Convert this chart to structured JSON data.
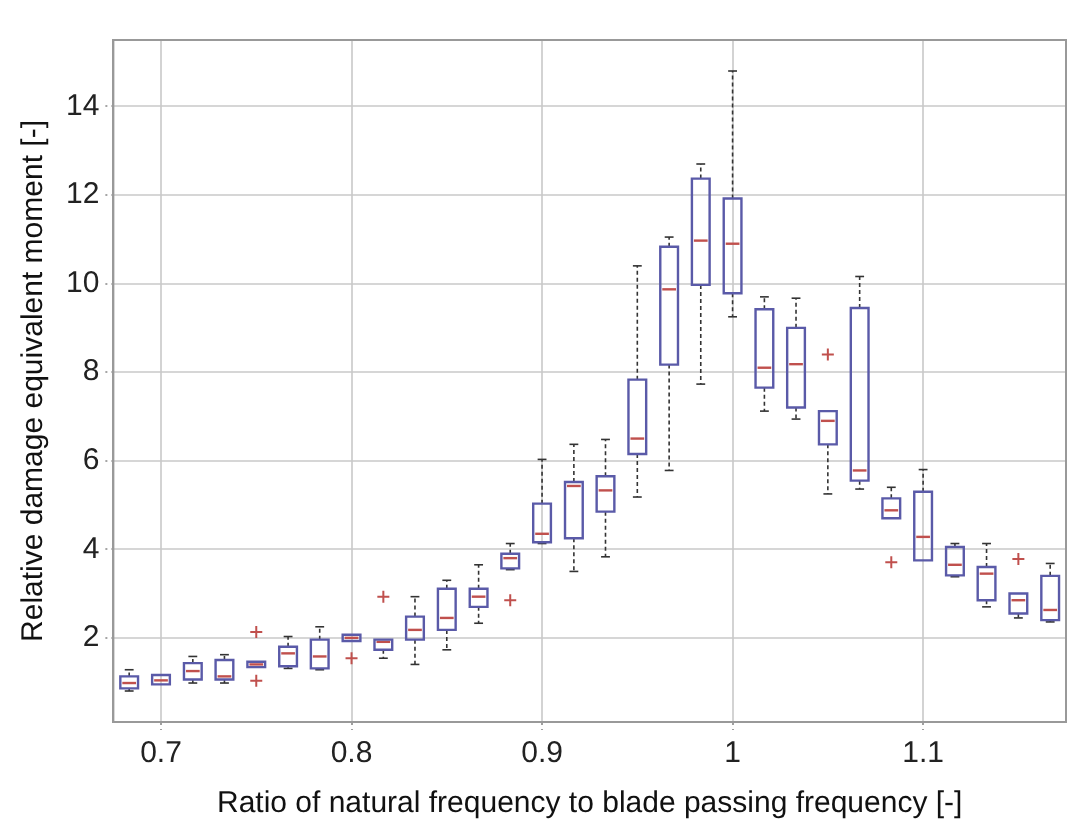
{
  "chart_data": {
    "type": "box",
    "xlabel": "Ratio of natural frequency to blade passing frequency [-]",
    "ylabel": "Relative damage equivalent moment [-]",
    "x": [
      0.6833,
      0.7,
      0.7167,
      0.7333,
      0.75,
      0.7667,
      0.7833,
      0.8,
      0.8167,
      0.8333,
      0.85,
      0.8667,
      0.8833,
      0.9,
      0.9167,
      0.9333,
      0.95,
      0.9667,
      0.9833,
      1.0,
      1.0167,
      1.0333,
      1.05,
      1.0667,
      1.0833,
      1.1,
      1.1167,
      1.1333,
      1.15,
      1.1667
    ],
    "xlim": [
      0.675,
      1.175
    ],
    "xticks": [
      0.7,
      0.8,
      0.9,
      1,
      1.1
    ],
    "ylim": [
      0.1,
      15.5
    ],
    "yticks": [
      2,
      4,
      6,
      8,
      10,
      12,
      14
    ],
    "grid": true,
    "series": [
      {
        "color": "#5a5aa8",
        "boxes": [
          {
            "low": 0.8,
            "q1": 0.86,
            "median": 0.98,
            "q3": 1.13,
            "high": 1.28
          },
          {
            "low": 0.95,
            "q1": 0.95,
            "median": 1.04,
            "q3": 1.16,
            "high": 1.16
          },
          {
            "low": 0.98,
            "q1": 1.06,
            "median": 1.25,
            "q3": 1.43,
            "high": 1.58
          },
          {
            "low": 0.98,
            "q1": 1.06,
            "median": 1.13,
            "q3": 1.5,
            "high": 1.62
          },
          {
            "low": 1.34,
            "q1": 1.34,
            "median": 1.4,
            "q3": 1.46,
            "high": 1.46,
            "outliers": [
              2.13,
              1.03
            ]
          },
          {
            "low": 1.31,
            "q1": 1.36,
            "median": 1.65,
            "q3": 1.8,
            "high": 2.03
          },
          {
            "low": 1.28,
            "q1": 1.31,
            "median": 1.58,
            "q3": 1.96,
            "high": 2.25
          },
          {
            "low": 1.93,
            "q1": 1.93,
            "median": 2.0,
            "q3": 2.07,
            "high": 2.07,
            "outliers": [
              1.54
            ]
          },
          {
            "low": 1.54,
            "q1": 1.73,
            "median": 1.91,
            "q3": 1.96,
            "high": 1.96,
            "outliers": [
              2.93
            ]
          },
          {
            "low": 1.4,
            "q1": 1.96,
            "median": 2.18,
            "q3": 2.48,
            "high": 2.93
          },
          {
            "low": 1.73,
            "q1": 2.18,
            "median": 2.45,
            "q3": 3.11,
            "high": 3.3
          },
          {
            "low": 2.33,
            "q1": 2.7,
            "median": 2.93,
            "q3": 3.11,
            "high": 3.65
          },
          {
            "low": 3.54,
            "q1": 3.57,
            "median": 3.8,
            "q3": 3.9,
            "high": 4.13,
            "outliers": [
              2.85
            ]
          },
          {
            "low": 4.13,
            "q1": 4.16,
            "median": 4.35,
            "q3": 5.03,
            "high": 6.03
          },
          {
            "low": 3.5,
            "q1": 4.25,
            "median": 5.43,
            "q3": 5.52,
            "high": 6.37
          },
          {
            "low": 3.83,
            "q1": 4.85,
            "median": 5.33,
            "q3": 5.65,
            "high": 6.48
          },
          {
            "low": 5.18,
            "q1": 6.15,
            "median": 6.5,
            "q3": 7.83,
            "high": 10.4
          },
          {
            "low": 5.78,
            "q1": 8.17,
            "median": 9.87,
            "q3": 10.83,
            "high": 11.05
          },
          {
            "low": 7.73,
            "q1": 9.97,
            "median": 10.97,
            "q3": 12.37,
            "high": 12.7
          },
          {
            "low": 9.25,
            "q1": 9.78,
            "median": 10.9,
            "q3": 11.92,
            "high": 14.8
          },
          {
            "low": 7.12,
            "q1": 7.65,
            "median": 8.1,
            "q3": 9.42,
            "high": 9.7
          },
          {
            "low": 6.94,
            "q1": 7.2,
            "median": 8.18,
            "q3": 9.0,
            "high": 9.67
          },
          {
            "low": 5.25,
            "q1": 6.37,
            "median": 6.9,
            "q3": 7.12,
            "high": 7.12,
            "outliers": [
              8.4
            ]
          },
          {
            "low": 5.36,
            "q1": 5.55,
            "median": 5.78,
            "q3": 9.45,
            "high": 10.16
          },
          {
            "low": 4.7,
            "q1": 4.7,
            "median": 4.88,
            "q3": 5.15,
            "high": 5.4,
            "outliers": [
              3.71
            ]
          },
          {
            "low": 3.75,
            "q1": 3.75,
            "median": 4.28,
            "q3": 5.3,
            "high": 5.8
          },
          {
            "low": 3.38,
            "q1": 3.41,
            "median": 3.65,
            "q3": 4.05,
            "high": 4.13
          },
          {
            "low": 2.7,
            "q1": 2.85,
            "median": 3.45,
            "q3": 3.6,
            "high": 4.13
          },
          {
            "low": 2.45,
            "q1": 2.55,
            "median": 2.85,
            "q3": 3.0,
            "high": 3.0,
            "outliers": [
              3.78
            ]
          },
          {
            "low": 2.36,
            "q1": 2.4,
            "median": 2.63,
            "q3": 3.4,
            "high": 3.68
          }
        ]
      }
    ]
  }
}
